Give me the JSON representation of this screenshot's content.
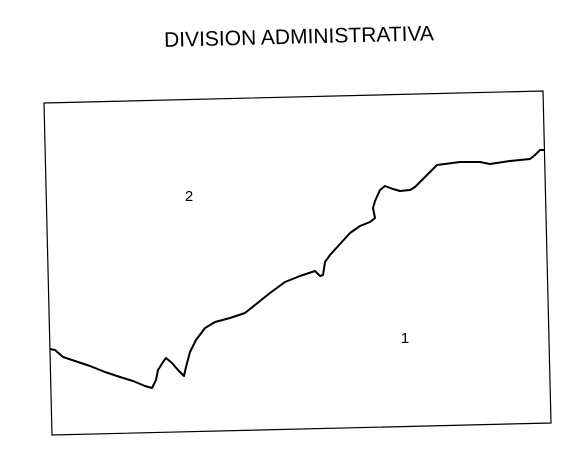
{
  "title": "DIVISION ADMINISTRATIVA",
  "regions": [
    {
      "label": "2"
    },
    {
      "label": "1"
    }
  ]
}
